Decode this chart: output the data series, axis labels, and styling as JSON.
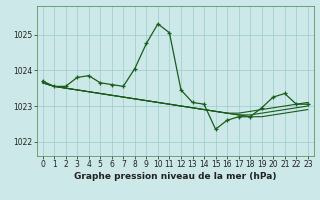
{
  "title": "Graphe pression niveau de la mer (hPa)",
  "bg_color": "#cce8e8",
  "grid_color": "#99cccc",
  "line_color": "#1a5c1a",
  "marker_color": "#1a5c1a",
  "ylim": [
    1021.6,
    1025.8
  ],
  "yticks": [
    1022,
    1023,
    1024,
    1025
  ],
  "xlim": [
    -0.5,
    23.5
  ],
  "xticks": [
    0,
    1,
    2,
    3,
    4,
    5,
    6,
    7,
    8,
    9,
    10,
    11,
    12,
    13,
    14,
    15,
    16,
    17,
    18,
    19,
    20,
    21,
    22,
    23
  ],
  "series": [
    [
      1023.7,
      1023.55,
      1023.55,
      1023.8,
      1023.85,
      1023.65,
      1023.6,
      1023.55,
      1024.05,
      1024.75,
      1025.3,
      1025.05,
      1023.45,
      1023.1,
      1023.05,
      1022.35,
      1022.6,
      1022.7,
      1022.7,
      1022.95,
      1023.25,
      1023.35,
      1023.05,
      1023.05
    ],
    [
      1023.65,
      1023.55,
      1023.5,
      1023.45,
      1023.4,
      1023.35,
      1023.3,
      1023.25,
      1023.2,
      1023.15,
      1023.1,
      1023.05,
      1023.0,
      1022.95,
      1022.9,
      1022.85,
      1022.8,
      1022.8,
      1022.85,
      1022.9,
      1022.95,
      1023.0,
      1023.05,
      1023.1
    ],
    [
      1023.65,
      1023.55,
      1023.5,
      1023.45,
      1023.4,
      1023.35,
      1023.3,
      1023.25,
      1023.2,
      1023.15,
      1023.1,
      1023.05,
      1023.0,
      1022.95,
      1022.9,
      1022.85,
      1022.8,
      1022.75,
      1022.75,
      1022.8,
      1022.85,
      1022.9,
      1022.95,
      1023.0
    ],
    [
      1023.65,
      1023.55,
      1023.5,
      1023.45,
      1023.4,
      1023.35,
      1023.3,
      1023.25,
      1023.2,
      1023.15,
      1023.1,
      1023.05,
      1023.0,
      1022.95,
      1022.9,
      1022.85,
      1022.8,
      1022.75,
      1022.7,
      1022.7,
      1022.75,
      1022.8,
      1022.85,
      1022.9
    ]
  ],
  "main_series_index": 0,
  "tick_fontsize": 5.5,
  "xlabel_fontsize": 6.5,
  "tick_color": "#222222",
  "spine_color": "#448844"
}
